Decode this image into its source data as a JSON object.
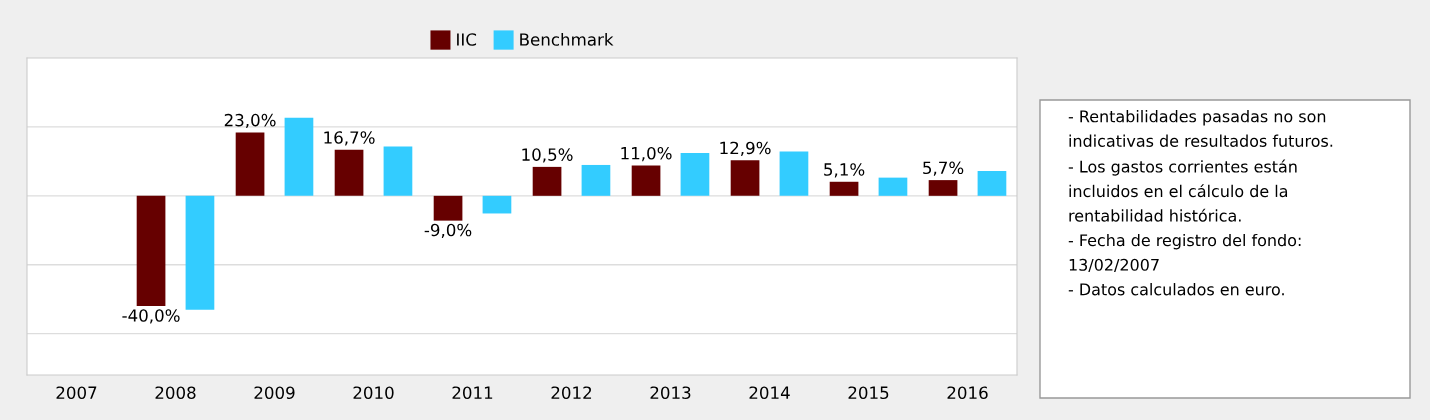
{
  "chart_data": {
    "type": "bar",
    "categories": [
      "2007",
      "2008",
      "2009",
      "2010",
      "2011",
      "2012",
      "2013",
      "2014",
      "2015",
      "2016"
    ],
    "series": [
      {
        "name": "IIC",
        "color": "#660000",
        "values": [
          null,
          -40.0,
          23.0,
          16.7,
          -9.0,
          10.5,
          11.0,
          12.9,
          5.1,
          5.7
        ],
        "value_labels": [
          null,
          "-40,0%",
          "23,0%",
          "16,7%",
          "-9,0%",
          "10,5%",
          "11,0%",
          "12,9%",
          "5,1%",
          "5,7%"
        ]
      },
      {
        "name": "Benchmark",
        "color": "#33ccff",
        "values": [
          null,
          -41.3,
          28.3,
          17.9,
          -6.4,
          11.2,
          15.5,
          16.1,
          6.6,
          9.0
        ]
      }
    ],
    "ylim": [
      -65,
      50
    ],
    "yticks": [
      {
        "value": -50,
        "label": null
      },
      {
        "value": -25,
        "label": null
      },
      {
        "value": 0,
        "label": null
      },
      {
        "value": 25,
        "label": null
      }
    ],
    "tick_labels": "x",
    "grid": "y",
    "legend": "top",
    "annotations": [
      "- Rentabilidades pasadas no son\nindicativas de resultados futuros.",
      "- Los gastos corrientes están\nincluidos en el cálculo de la\nrentabilidad histórica.",
      "- Fecha de registro del fondo:\n13/02/2007",
      "- Datos calculados en euro."
    ]
  }
}
